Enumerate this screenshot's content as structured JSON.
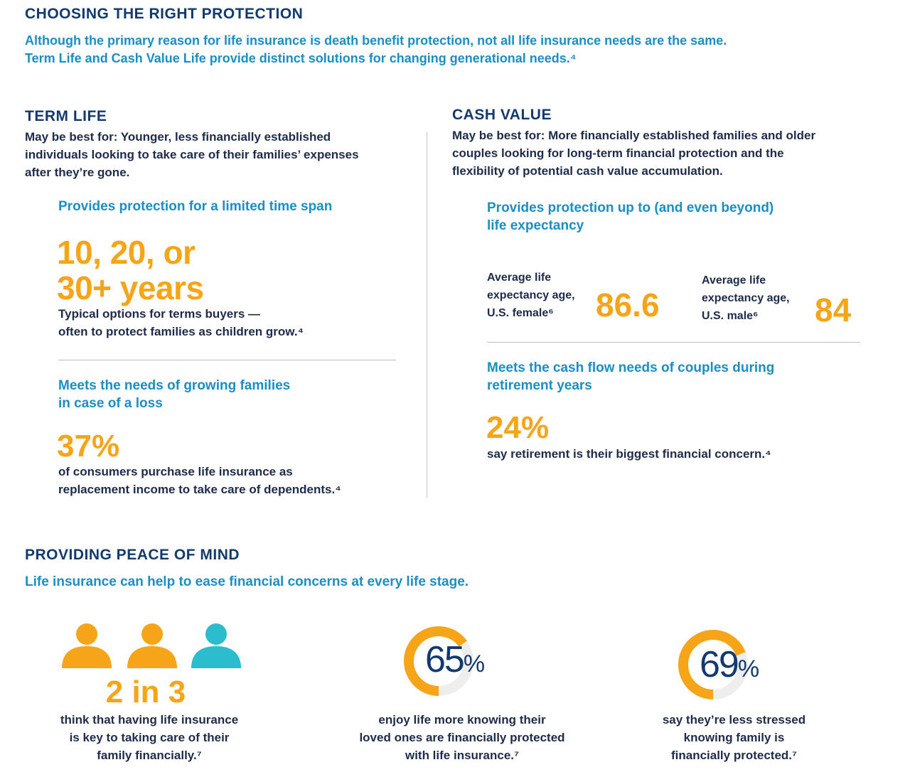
{
  "section1": {
    "title": "CHOOSING THE RIGHT PROTECTION",
    "intro_line1": "Although the primary reason for life insurance is death benefit protection, not all life insurance needs are the same.",
    "intro_line2": "Term Life and Cash Value Life provide distinct solutions for changing generational needs.⁴"
  },
  "term": {
    "title": "TERM LIFE",
    "best_for_line1": "May be best for: Younger, less financially established",
    "best_for_line2": "individuals looking to take care of their families’ expenses",
    "best_for_line3": "after they’re gone.",
    "benefit1": "Provides protection for a limited time span",
    "stat1_line1": "10, 20, or",
    "stat1_line2": "30+ years",
    "stat1_desc_line1": "Typical options for terms buyers —",
    "stat1_desc_line2": "often to protect families as children grow.⁴",
    "benefit2_line1": "Meets the needs of growing families",
    "benefit2_line2": "in case of a loss",
    "stat2": "37%",
    "stat2_desc_line1": "of consumers purchase life insurance as",
    "stat2_desc_line2": "replacement income to take care of dependents.⁴"
  },
  "cash": {
    "title": "CASH VALUE",
    "best_for_line1": "May be best for: More financially established families and older",
    "best_for_line2": "couples looking for long-term financial protection and the",
    "best_for_line3": "flexibility of potential cash value accumulation.",
    "benefit1_line1": "Provides protection up to (and even beyond)",
    "benefit1_line2": "life expectancy",
    "female_label_line1": "Average life",
    "female_label_line2": "expectancy age,",
    "female_label_line3": "U.S. female⁶",
    "female_value": "86.6",
    "male_label_line1": "Average life",
    "male_label_line2": "expectancy age,",
    "male_label_line3": "U.S. male⁶",
    "male_value": "84",
    "benefit2_line1": "Meets the cash flow needs of couples during",
    "benefit2_line2": "retirement years",
    "stat": "24%",
    "stat_desc": "say retirement is their biggest financial concern.⁴"
  },
  "section2": {
    "title": "PROVIDING PEACE OF MIND",
    "subtitle": "Life insurance can help to ease financial concerns at every life stage."
  },
  "stats": [
    {
      "value": "2 in 3",
      "desc_line1": "think that having life insurance",
      "desc_line2": "is key to taking care of their",
      "desc_line3": "family financially.⁷"
    },
    {
      "value": "65",
      "unit": "%",
      "percent": 65,
      "desc_line1": "enjoy life more knowing their",
      "desc_line2": "loved ones are financially protected",
      "desc_line3": "with life insurance.⁷"
    },
    {
      "value": "69",
      "unit": "%",
      "percent": 69,
      "desc_line1": "say they’re less stressed",
      "desc_line2": "knowing family is",
      "desc_line3": "financially protected.⁷"
    }
  ],
  "colors": {
    "navy": "#133a6e",
    "blue": "#1b8ec3",
    "orange": "#f6a418",
    "teal": "#2bbccd",
    "ring_bg": "#eeeeee"
  },
  "icons": [
    "person-icon",
    "person-icon",
    "person-icon"
  ]
}
